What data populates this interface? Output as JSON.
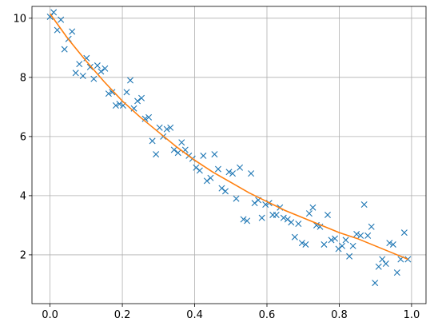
{
  "chart_data": {
    "type": "scatter",
    "xlim": [
      -0.05,
      1.04
    ],
    "ylim": [
      0.35,
      10.4
    ],
    "grid": true,
    "xticks": [
      0.0,
      0.2,
      0.4,
      0.6,
      0.8,
      1.0
    ],
    "xtick_labels": [
      "0.0",
      "0.2",
      "0.4",
      "0.6",
      "0.8",
      "1.0"
    ],
    "yticks": [
      2,
      4,
      6,
      8,
      10
    ],
    "ytick_labels": [
      "2",
      "4",
      "6",
      "8",
      "10"
    ],
    "series": [
      {
        "kind": "scatter",
        "marker": "x",
        "color": "#1f77b4",
        "x": [
          0.0,
          0.01,
          0.02,
          0.03,
          0.04,
          0.051,
          0.061,
          0.071,
          0.081,
          0.091,
          0.101,
          0.111,
          0.121,
          0.131,
          0.141,
          0.152,
          0.162,
          0.172,
          0.182,
          0.192,
          0.202,
          0.212,
          0.222,
          0.232,
          0.242,
          0.253,
          0.263,
          0.273,
          0.283,
          0.293,
          0.303,
          0.313,
          0.323,
          0.333,
          0.343,
          0.354,
          0.364,
          0.374,
          0.384,
          0.394,
          0.404,
          0.414,
          0.424,
          0.434,
          0.444,
          0.455,
          0.465,
          0.475,
          0.485,
          0.495,
          0.505,
          0.515,
          0.525,
          0.535,
          0.545,
          0.556,
          0.566,
          0.576,
          0.586,
          0.596,
          0.606,
          0.616,
          0.626,
          0.636,
          0.646,
          0.657,
          0.667,
          0.677,
          0.687,
          0.697,
          0.707,
          0.717,
          0.727,
          0.737,
          0.747,
          0.758,
          0.768,
          0.778,
          0.788,
          0.798,
          0.808,
          0.818,
          0.828,
          0.838,
          0.848,
          0.859,
          0.869,
          0.879,
          0.889,
          0.899,
          0.909,
          0.919,
          0.929,
          0.939,
          0.949,
          0.96,
          0.97,
          0.98,
          0.99
        ],
        "y": [
          10.05,
          10.2,
          9.6,
          9.95,
          8.95,
          9.3,
          9.55,
          8.15,
          8.45,
          8.05,
          8.65,
          8.35,
          7.95,
          8.4,
          8.2,
          8.3,
          7.45,
          7.5,
          7.05,
          7.1,
          7.05,
          7.5,
          7.9,
          6.95,
          7.2,
          7.3,
          6.6,
          6.65,
          5.85,
          5.4,
          6.3,
          6.0,
          6.25,
          6.3,
          5.55,
          5.45,
          5.8,
          5.55,
          5.35,
          5.25,
          4.95,
          4.85,
          5.35,
          4.5,
          4.6,
          5.4,
          4.9,
          4.25,
          4.15,
          4.8,
          4.75,
          3.9,
          4.95,
          3.2,
          3.15,
          4.75,
          3.75,
          3.85,
          3.25,
          3.7,
          3.75,
          3.35,
          3.35,
          3.6,
          3.25,
          3.2,
          3.1,
          2.6,
          3.05,
          2.4,
          2.35,
          3.4,
          3.6,
          3.0,
          2.95,
          2.35,
          3.35,
          2.5,
          2.55,
          2.2,
          2.3,
          2.5,
          1.95,
          2.3,
          2.7,
          2.65,
          3.7,
          2.65,
          2.95,
          1.05,
          1.6,
          1.85,
          1.7,
          2.4,
          2.35,
          1.4,
          1.85,
          2.75,
          1.85
        ]
      },
      {
        "kind": "line",
        "color": "#ff7f0e",
        "x": [
          0.0,
          0.05,
          0.1,
          0.15,
          0.2,
          0.25,
          0.3,
          0.35,
          0.4,
          0.45,
          0.5,
          0.55,
          0.6,
          0.65,
          0.7,
          0.75,
          0.8,
          0.85,
          0.9,
          0.95,
          0.99
        ],
        "y": [
          10.15,
          9.3,
          8.55,
          7.85,
          7.2,
          6.65,
          6.15,
          5.65,
          5.2,
          4.8,
          4.45,
          4.1,
          3.8,
          3.5,
          3.25,
          3.0,
          2.75,
          2.55,
          2.3,
          2.05,
          1.85
        ]
      }
    ]
  }
}
